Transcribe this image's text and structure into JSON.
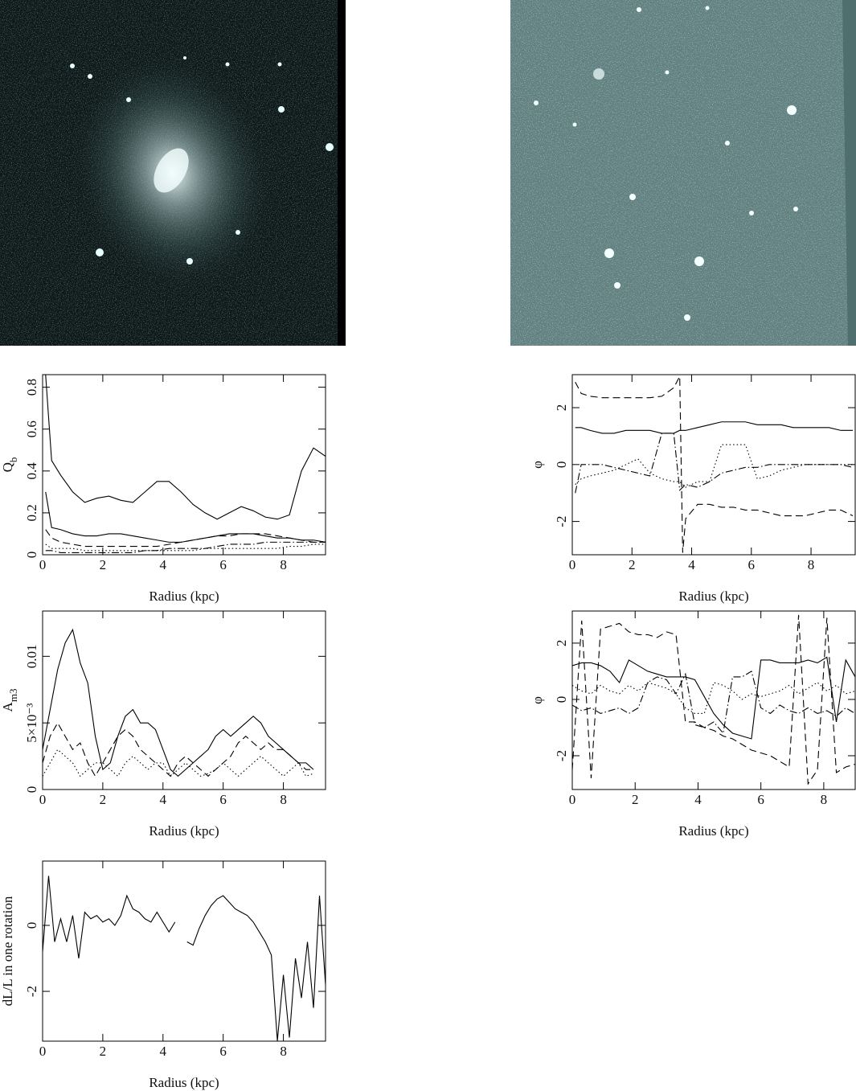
{
  "chart_data": [
    {
      "type": "line",
      "xlabel": "Radius (kpc)",
      "ylabel": "Q",
      "ylabel_sub": "b",
      "x": [
        0.1,
        0.3,
        0.6,
        1.0,
        1.4,
        1.8,
        2.2,
        2.6,
        3.0,
        3.4,
        3.8,
        4.2,
        4.6,
        5.0,
        5.4,
        5.8,
        6.2,
        6.6,
        7.0,
        7.4,
        7.8,
        8.2,
        8.6,
        9.0,
        9.4
      ],
      "xlim": [
        0,
        9.4
      ],
      "xticks": [
        0,
        2,
        4,
        6,
        8
      ],
      "ylim": [
        0,
        0.86
      ],
      "yticks": [
        0,
        0.2,
        0.4,
        0.6,
        0.8
      ],
      "series": [
        {
          "color": "#000",
          "dash": "solid",
          "values": [
            0.86,
            0.45,
            0.38,
            0.3,
            0.25,
            0.27,
            0.28,
            0.26,
            0.25,
            0.3,
            0.35,
            0.35,
            0.3,
            0.24,
            0.2,
            0.17,
            0.2,
            0.23,
            0.21,
            0.18,
            0.17,
            0.19,
            0.4,
            0.51,
            0.47
          ]
        },
        {
          "color": "#000",
          "dash": "solid",
          "values": [
            0.3,
            0.13,
            0.12,
            0.1,
            0.09,
            0.09,
            0.1,
            0.1,
            0.09,
            0.08,
            0.07,
            0.06,
            0.06,
            0.07,
            0.08,
            0.09,
            0.1,
            0.1,
            0.1,
            0.09,
            0.08,
            0.08,
            0.07,
            0.07,
            0.06
          ]
        },
        {
          "color": "#000",
          "dash": "dashed",
          "values": [
            0.12,
            0.08,
            0.06,
            0.05,
            0.04,
            0.04,
            0.04,
            0.04,
            0.04,
            0.04,
            0.04,
            0.05,
            0.06,
            0.07,
            0.08,
            0.09,
            0.09,
            0.1,
            0.1,
            0.1,
            0.09,
            0.08,
            0.07,
            0.06,
            0.06
          ]
        },
        {
          "color": "#000",
          "dash": "dotted",
          "values": [
            0.05,
            0.03,
            0.03,
            0.03,
            0.02,
            0.02,
            0.02,
            0.02,
            0.02,
            0.02,
            0.02,
            0.02,
            0.02,
            0.02,
            0.03,
            0.03,
            0.03,
            0.03,
            0.03,
            0.03,
            0.03,
            0.04,
            0.04,
            0.05,
            0.05
          ]
        },
        {
          "color": "#000",
          "dash": "dashdot",
          "values": [
            0.02,
            0.02,
            0.01,
            0.01,
            0.01,
            0.01,
            0.01,
            0.01,
            0.01,
            0.02,
            0.02,
            0.03,
            0.03,
            0.03,
            0.03,
            0.04,
            0.05,
            0.05,
            0.05,
            0.06,
            0.06,
            0.06,
            0.06,
            0.06,
            0.06
          ]
        }
      ]
    },
    {
      "type": "line",
      "xlabel": "Radius (kpc)",
      "ylabel": "φ",
      "x": [
        0.1,
        0.3,
        0.6,
        1.0,
        1.4,
        1.8,
        2.2,
        2.6,
        3.0,
        3.4,
        3.6,
        3.7,
        3.8,
        4.2,
        4.6,
        5.0,
        5.4,
        5.8,
        6.2,
        6.6,
        7.0,
        7.4,
        7.8,
        8.2,
        8.6,
        9.0,
        9.4
      ],
      "xlim": [
        0,
        9.48
      ],
      "xticks": [
        0,
        2,
        4,
        6,
        8
      ],
      "ylim": [
        -3.17,
        3.16
      ],
      "yticks": [
        -2,
        0,
        2
      ],
      "series": [
        {
          "color": "#000",
          "dash": "solid",
          "values": [
            1.3,
            1.3,
            1.2,
            1.1,
            1.1,
            1.2,
            1.2,
            1.2,
            1.1,
            1.1,
            1.2,
            1.2,
            1.2,
            1.3,
            1.4,
            1.5,
            1.5,
            1.5,
            1.4,
            1.4,
            1.4,
            1.3,
            1.3,
            1.3,
            1.3,
            1.2,
            1.2
          ]
        },
        {
          "color": "#000",
          "dash": "dashed",
          "values": [
            2.9,
            2.5,
            2.4,
            2.35,
            2.35,
            2.35,
            2.35,
            2.35,
            2.4,
            2.7,
            3.1,
            -3.1,
            -1.9,
            -1.4,
            -1.4,
            -1.5,
            -1.5,
            -1.6,
            -1.6,
            -1.7,
            -1.8,
            -1.8,
            -1.8,
            -1.7,
            -1.6,
            -1.6,
            -1.8
          ]
        },
        {
          "color": "#000",
          "dash": "dotted",
          "values": [
            -0.7,
            -0.5,
            -0.4,
            -0.3,
            -0.2,
            0,
            0.2,
            -0.3,
            -0.5,
            -0.6,
            -0.6,
            -0.7,
            -0.8,
            -0.6,
            -0.6,
            0.7,
            0.7,
            0.7,
            -0.5,
            -0.4,
            -0.2,
            -0.1,
            0,
            0,
            0,
            0,
            0
          ]
        },
        {
          "color": "#000",
          "dash": "dashdot",
          "values": [
            -1.0,
            0,
            0,
            0,
            -0.1,
            -0.2,
            -0.3,
            -0.4,
            1.1,
            1.1,
            -0.9,
            -0.8,
            -0.7,
            -0.8,
            -0.6,
            -0.3,
            -0.2,
            -0.1,
            -0.1,
            0,
            0,
            0,
            0,
            0,
            0,
            0,
            -0.1
          ]
        }
      ]
    },
    {
      "type": "line",
      "xlabel": "Radius (kpc)",
      "ylabel": "A",
      "ylabel_sub": "m3",
      "x": [
        0,
        0.25,
        0.5,
        0.75,
        1.0,
        1.25,
        1.5,
        1.75,
        2.0,
        2.25,
        2.5,
        2.75,
        3.0,
        3.25,
        3.5,
        3.75,
        4.0,
        4.25,
        4.5,
        4.75,
        5.0,
        5.25,
        5.5,
        5.75,
        6.0,
        6.25,
        6.5,
        6.75,
        7.0,
        7.25,
        7.5,
        7.75,
        8.0,
        8.25,
        8.5,
        8.75,
        9.0
      ],
      "xlim": [
        0,
        9.4
      ],
      "xticks": [
        0,
        2,
        4,
        6,
        8
      ],
      "ylim": [
        0,
        0.0134
      ],
      "yticks": [
        0,
        {
          "value": 0.005,
          "label": "5×10⁻³"
        },
        0.01
      ],
      "series": [
        {
          "color": "#000",
          "dash": "solid",
          "values": [
            0.003,
            0.006,
            0.009,
            0.011,
            0.012,
            0.0095,
            0.008,
            0.004,
            0.0015,
            0.002,
            0.004,
            0.0055,
            0.006,
            0.005,
            0.005,
            0.0045,
            0.003,
            0.0015,
            0.001,
            0.0015,
            0.002,
            0.0025,
            0.003,
            0.004,
            0.0045,
            0.004,
            0.0045,
            0.005,
            0.0055,
            0.005,
            0.004,
            0.0035,
            0.003,
            0.0025,
            0.002,
            0.002,
            0.0015
          ]
        },
        {
          "color": "#000",
          "dash": "dashed",
          "values": [
            0.002,
            0.004,
            0.005,
            0.004,
            0.003,
            0.0035,
            0.002,
            0.001,
            0.002,
            0.003,
            0.004,
            0.0045,
            0.004,
            0.003,
            0.0025,
            0.002,
            0.0015,
            0.001,
            0.002,
            0.0025,
            0.002,
            0.0015,
            0.001,
            0.0015,
            0.002,
            0.0025,
            0.0035,
            0.004,
            0.0035,
            0.003,
            0.0035,
            0.003,
            0.003,
            0.0025,
            0.002,
            0.0015,
            0.0015
          ]
        },
        {
          "color": "#000",
          "dash": "dotted",
          "values": [
            0.001,
            0.002,
            0.003,
            0.0025,
            0.002,
            0.001,
            0.0015,
            0.002,
            0.002,
            0.0015,
            0.001,
            0.002,
            0.0025,
            0.002,
            0.0015,
            0.002,
            0.002,
            0.001,
            0.0015,
            0.002,
            0.0015,
            0.001,
            0.0012,
            0.0015,
            0.002,
            0.0015,
            0.001,
            0.0015,
            0.002,
            0.0025,
            0.002,
            0.0015,
            0.001,
            0.0015,
            0.002,
            0.001,
            0.0012
          ]
        }
      ]
    },
    {
      "type": "line",
      "xlabel": "Radius (kpc)",
      "ylabel": "φ",
      "x": [
        0,
        0.3,
        0.6,
        0.9,
        1.2,
        1.5,
        1.8,
        2.1,
        2.4,
        2.7,
        3.0,
        3.3,
        3.6,
        3.9,
        4.2,
        4.5,
        4.8,
        5.1,
        5.4,
        5.7,
        6.0,
        6.3,
        6.6,
        6.9,
        7.2,
        7.5,
        7.8,
        8.1,
        8.4,
        8.7,
        9.0
      ],
      "xlim": [
        0,
        9.0
      ],
      "xticks": [
        0,
        2,
        4,
        6,
        8
      ],
      "ylim": [
        -3.2,
        3.14
      ],
      "yticks": [
        -2,
        0,
        2
      ],
      "series": [
        {
          "color": "#000",
          "dash": "solid",
          "values": [
            1.2,
            1.3,
            1.3,
            1.2,
            1.0,
            0.6,
            1.4,
            1.2,
            1.0,
            0.9,
            0.8,
            0.8,
            0.8,
            0.7,
            0.1,
            -0.5,
            -0.9,
            -1.2,
            -1.3,
            -1.4,
            1.4,
            1.4,
            1.3,
            1.3,
            1.3,
            1.4,
            1.3,
            1.5,
            -0.8,
            1.4,
            0.8
          ]
        },
        {
          "color": "#000",
          "dash": "dashed",
          "values": [
            -2.5,
            2.8,
            -2.8,
            2.5,
            2.6,
            2.7,
            2.4,
            2.3,
            2.3,
            2.2,
            2.4,
            2.3,
            -0.8,
            -0.8,
            -1.0,
            -1.1,
            -1.3,
            -1.4,
            -1.6,
            -1.8,
            -1.9,
            -2.0,
            -2.2,
            -2.4,
            3.0,
            -3.0,
            -2.5,
            2.9,
            -2.6,
            -2.4,
            -2.3
          ]
        },
        {
          "color": "#000",
          "dash": "dotted",
          "values": [
            0.5,
            0.3,
            0.2,
            0.5,
            0.3,
            0.2,
            0.5,
            0.3,
            0.6,
            0.5,
            0.4,
            0.2,
            -0.3,
            -0.5,
            -0.5,
            0.6,
            0.5,
            0.3,
            0.0,
            0.2,
            0.1,
            0.2,
            0.3,
            0.5,
            0.2,
            0.4,
            0.6,
            0.3,
            0.5,
            0.2,
            0.3
          ]
        },
        {
          "color": "#000",
          "dash": "dashdot",
          "values": [
            -0.2,
            -0.4,
            -0.3,
            -0.5,
            -0.4,
            -0.3,
            -0.5,
            -0.3,
            0.6,
            0.8,
            0.7,
            0.2,
            0.9,
            -0.9,
            -1.0,
            -0.8,
            -1.2,
            0.8,
            0.8,
            1.0,
            -0.3,
            -0.5,
            -0.2,
            -0.4,
            -0.5,
            -0.3,
            -0.5,
            -0.4,
            -0.6,
            -0.3,
            -0.5
          ]
        }
      ]
    },
    {
      "type": "line",
      "xlabel": "Radius (kpc)",
      "ylabel": "dL/L in one rotation",
      "x": [
        0,
        0.2,
        0.4,
        0.6,
        0.8,
        1.0,
        1.2,
        1.4,
        1.6,
        1.8,
        2.0,
        2.2,
        2.4,
        2.6,
        2.8,
        3.0,
        3.2,
        3.4,
        3.6,
        3.8,
        4.0,
        4.2,
        4.4,
        4.6,
        4.8,
        5.0,
        5.2,
        5.4,
        5.6,
        5.8,
        6.0,
        6.2,
        6.4,
        6.6,
        6.8,
        7.0,
        7.2,
        7.4,
        7.6,
        7.8,
        8.0,
        8.2,
        8.4,
        8.6,
        8.8,
        9.0,
        9.2,
        9.4
      ],
      "xlim": [
        0,
        9.4
      ],
      "xticks": [
        0,
        2,
        4,
        6,
        8
      ],
      "ylim": [
        -3.51,
        1.95
      ],
      "yticks": [
        -2,
        0
      ],
      "series": [
        {
          "color": "#000",
          "dash": "solid",
          "values": [
            -0.8,
            1.5,
            -0.5,
            0.2,
            -0.5,
            0.3,
            -1.0,
            0.4,
            0.2,
            0.3,
            0.1,
            0.2,
            0.0,
            0.3,
            0.9,
            0.5,
            0.4,
            0.2,
            0.1,
            0.4,
            0.1,
            -0.2,
            0.1,
            null,
            -0.5,
            -0.6,
            -0.1,
            0.3,
            0.6,
            0.8,
            0.9,
            0.7,
            0.5,
            0.4,
            0.3,
            0.1,
            -0.2,
            -0.5,
            -0.9,
            -3.5,
            -1.5,
            -3.4,
            -1.0,
            -2.2,
            -0.5,
            -2.5,
            0.9,
            -1.8
          ]
        }
      ]
    }
  ]
}
